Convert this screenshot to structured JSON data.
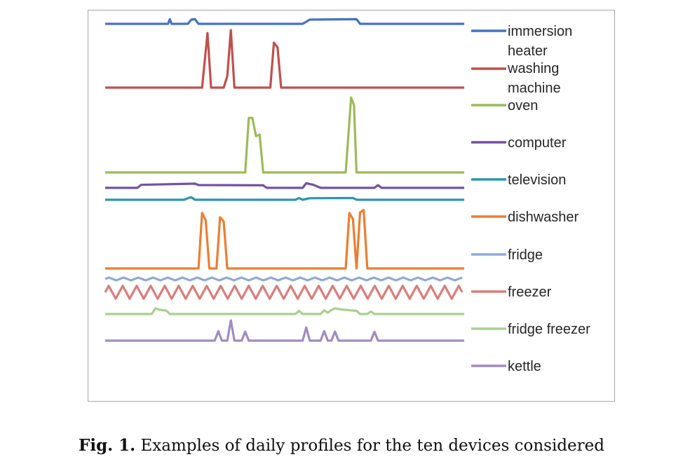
{
  "caption": {
    "label": "Fig. 1.",
    "text": "Examples of daily profiles for the ten devices considered"
  },
  "chart_data": {
    "type": "line",
    "title": "",
    "xlabel": "",
    "ylabel": "",
    "x_range": [
      0,
      100
    ],
    "grid": false,
    "legend_position": "right",
    "series": [
      {
        "name": "immersion heater",
        "color": "#4472c4",
        "baseline": 0.2,
        "peak": 1.2,
        "shape": [
          [
            0,
            0
          ],
          [
            17.5,
            0
          ],
          [
            18,
            0.55
          ],
          [
            18.5,
            0
          ],
          [
            23,
            0
          ],
          [
            24,
            0.5
          ],
          [
            25,
            0.55
          ],
          [
            26,
            0
          ],
          [
            55,
            0
          ],
          [
            57,
            0.5
          ],
          [
            70,
            0.55
          ],
          [
            71,
            0
          ],
          [
            100,
            0
          ]
        ]
      },
      {
        "name": "washing machine",
        "color": "#c0504d",
        "baseline": 1.1,
        "peak": 8.2,
        "shape": [
          [
            0,
            0
          ],
          [
            27,
            0
          ],
          [
            28.5,
            0.95
          ],
          [
            29.5,
            0
          ],
          [
            33,
            0
          ],
          [
            34,
            0.2
          ],
          [
            35,
            1.0
          ],
          [
            36,
            0
          ],
          [
            46,
            0
          ],
          [
            47,
            0.78
          ],
          [
            48,
            0.7
          ],
          [
            49,
            0
          ],
          [
            100,
            0
          ]
        ]
      },
      {
        "name": "oven",
        "color": "#9bbb59",
        "baseline": 1.8,
        "peak": 11.5,
        "shape": [
          [
            0,
            0
          ],
          [
            39,
            0
          ],
          [
            40,
            0.72
          ],
          [
            41,
            0.72
          ],
          [
            42,
            0.48
          ],
          [
            43,
            0.5
          ],
          [
            44,
            0
          ],
          [
            67,
            0
          ],
          [
            68.5,
            0.99
          ],
          [
            69.3,
            0.89
          ],
          [
            70,
            0
          ],
          [
            100,
            0
          ]
        ]
      },
      {
        "name": "computer",
        "color": "#7351a3",
        "baseline": 1.1,
        "peak": 3.0,
        "shape": [
          [
            0,
            0
          ],
          [
            9,
            0
          ],
          [
            10,
            0.36
          ],
          [
            25,
            0.5
          ],
          [
            26,
            0.33
          ],
          [
            44,
            0.3
          ],
          [
            45,
            0
          ],
          [
            55,
            0
          ],
          [
            56,
            0.55
          ],
          [
            58,
            0.36
          ],
          [
            60,
            0
          ],
          [
            75,
            0
          ],
          [
            76,
            0.32
          ],
          [
            77,
            0
          ],
          [
            100,
            0
          ]
        ]
      },
      {
        "name": "television",
        "color": "#2997ad",
        "baseline": 0.85,
        "peak": 1.7,
        "shape": [
          [
            0,
            0
          ],
          [
            22,
            0
          ],
          [
            23.5,
            0.45
          ],
          [
            24,
            0.5
          ],
          [
            25,
            0
          ],
          [
            53,
            0
          ],
          [
            54,
            0.35
          ],
          [
            55,
            0
          ],
          [
            57,
            0.32
          ],
          [
            69,
            0.36
          ],
          [
            70,
            0
          ],
          [
            100,
            0
          ]
        ]
      },
      {
        "name": "dishwasher",
        "color": "#ed7d31",
        "baseline": 0.9,
        "peak": 8.5,
        "shape": [
          [
            0,
            0
          ],
          [
            26,
            0
          ],
          [
            27,
            0.92
          ],
          [
            28,
            0.8
          ],
          [
            29,
            0
          ],
          [
            31,
            0
          ],
          [
            32,
            0.85
          ],
          [
            33,
            0.78
          ],
          [
            34,
            0
          ],
          [
            67,
            0
          ],
          [
            68,
            0.92
          ],
          [
            69,
            0.82
          ],
          [
            70,
            0
          ],
          [
            71,
            0.93
          ],
          [
            72,
            0.97
          ],
          [
            73,
            0
          ],
          [
            100,
            0
          ]
        ]
      },
      {
        "name": "fridge",
        "color": "#8eaadb",
        "baseline": 1.1,
        "peak": 3.0,
        "oscillation": {
          "amplitude": 0.18,
          "period_x": 4.1
        }
      },
      {
        "name": "freezer",
        "color": "#db7d7a",
        "baseline": 1.0,
        "peak": 2.5,
        "oscillation": {
          "amplitude": 0.38,
          "period_x": 3.9
        }
      },
      {
        "name": "fridge freezer",
        "color": "#a9d18e",
        "baseline": 1.0,
        "peak": 3.0,
        "shape": [
          [
            0,
            0
          ],
          [
            13,
            0
          ],
          [
            14,
            0.45
          ],
          [
            15,
            0.35
          ],
          [
            16,
            0.3
          ],
          [
            17,
            0.28
          ],
          [
            18,
            0
          ],
          [
            53,
            0
          ],
          [
            54,
            0.25
          ],
          [
            55,
            0
          ],
          [
            60,
            0
          ],
          [
            61,
            0.3
          ],
          [
            62,
            0.1
          ],
          [
            63,
            0.32
          ],
          [
            64,
            0.45
          ],
          [
            66,
            0.35
          ],
          [
            68,
            0.3
          ],
          [
            70,
            0.25
          ],
          [
            71,
            0
          ],
          [
            73,
            0
          ],
          [
            74,
            0.2
          ],
          [
            75,
            0
          ],
          [
            100,
            0
          ]
        ]
      },
      {
        "name": "kettle",
        "color": "#a28bc4",
        "baseline": 0.8,
        "peak": 2.8,
        "shape": [
          [
            0,
            0
          ],
          [
            30.5,
            0
          ],
          [
            31.5,
            0.4
          ],
          [
            32.5,
            0
          ],
          [
            34,
            0
          ],
          [
            35,
            0.85
          ],
          [
            36,
            0
          ],
          [
            38,
            0
          ],
          [
            39,
            0.38
          ],
          [
            40,
            0
          ],
          [
            55,
            0
          ],
          [
            56,
            0.55
          ],
          [
            57,
            0
          ],
          [
            60,
            0
          ],
          [
            61,
            0.4
          ],
          [
            62,
            0
          ],
          [
            63,
            0
          ],
          [
            64,
            0.38
          ],
          [
            65,
            0
          ],
          [
            74,
            0
          ],
          [
            75,
            0.37
          ],
          [
            76,
            0
          ],
          [
            100,
            0
          ]
        ]
      }
    ]
  }
}
